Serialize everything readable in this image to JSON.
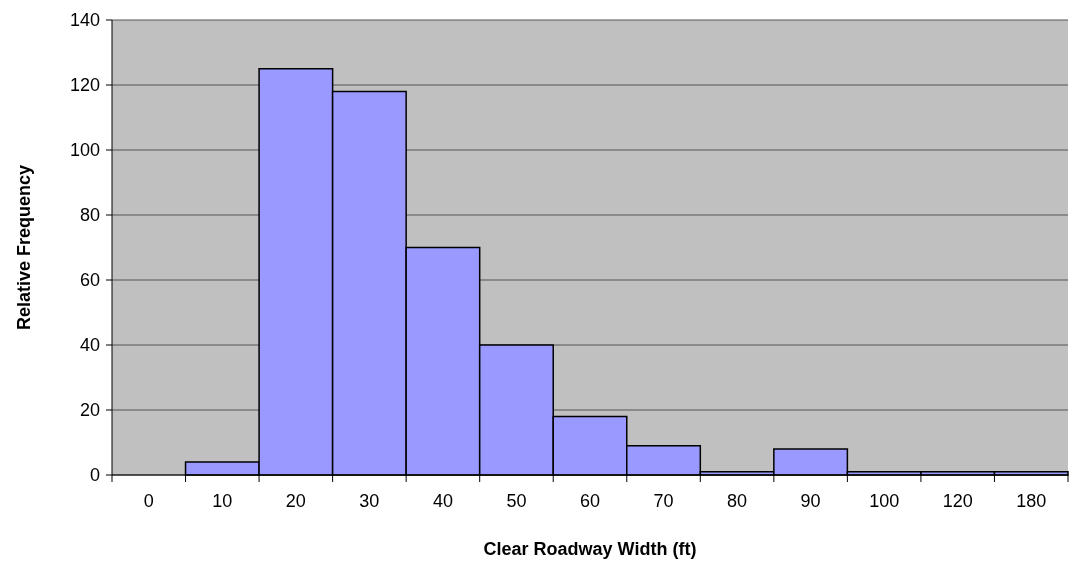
{
  "chart_data": {
    "type": "bar",
    "xlabel": "Clear Roadway Width (ft)",
    "ylabel": "Relative Frequency",
    "categories": [
      "0",
      "10",
      "20",
      "30",
      "40",
      "50",
      "60",
      "70",
      "80",
      "90",
      "100",
      "120",
      "180"
    ],
    "values": [
      0,
      4,
      125,
      118,
      70,
      40,
      18,
      9,
      1,
      8,
      1,
      1,
      1
    ],
    "color": "#9999ff",
    "ylim": [
      0,
      140
    ],
    "yticks": [
      0,
      20,
      40,
      60,
      80,
      100,
      120,
      140
    ],
    "grid": "y"
  }
}
